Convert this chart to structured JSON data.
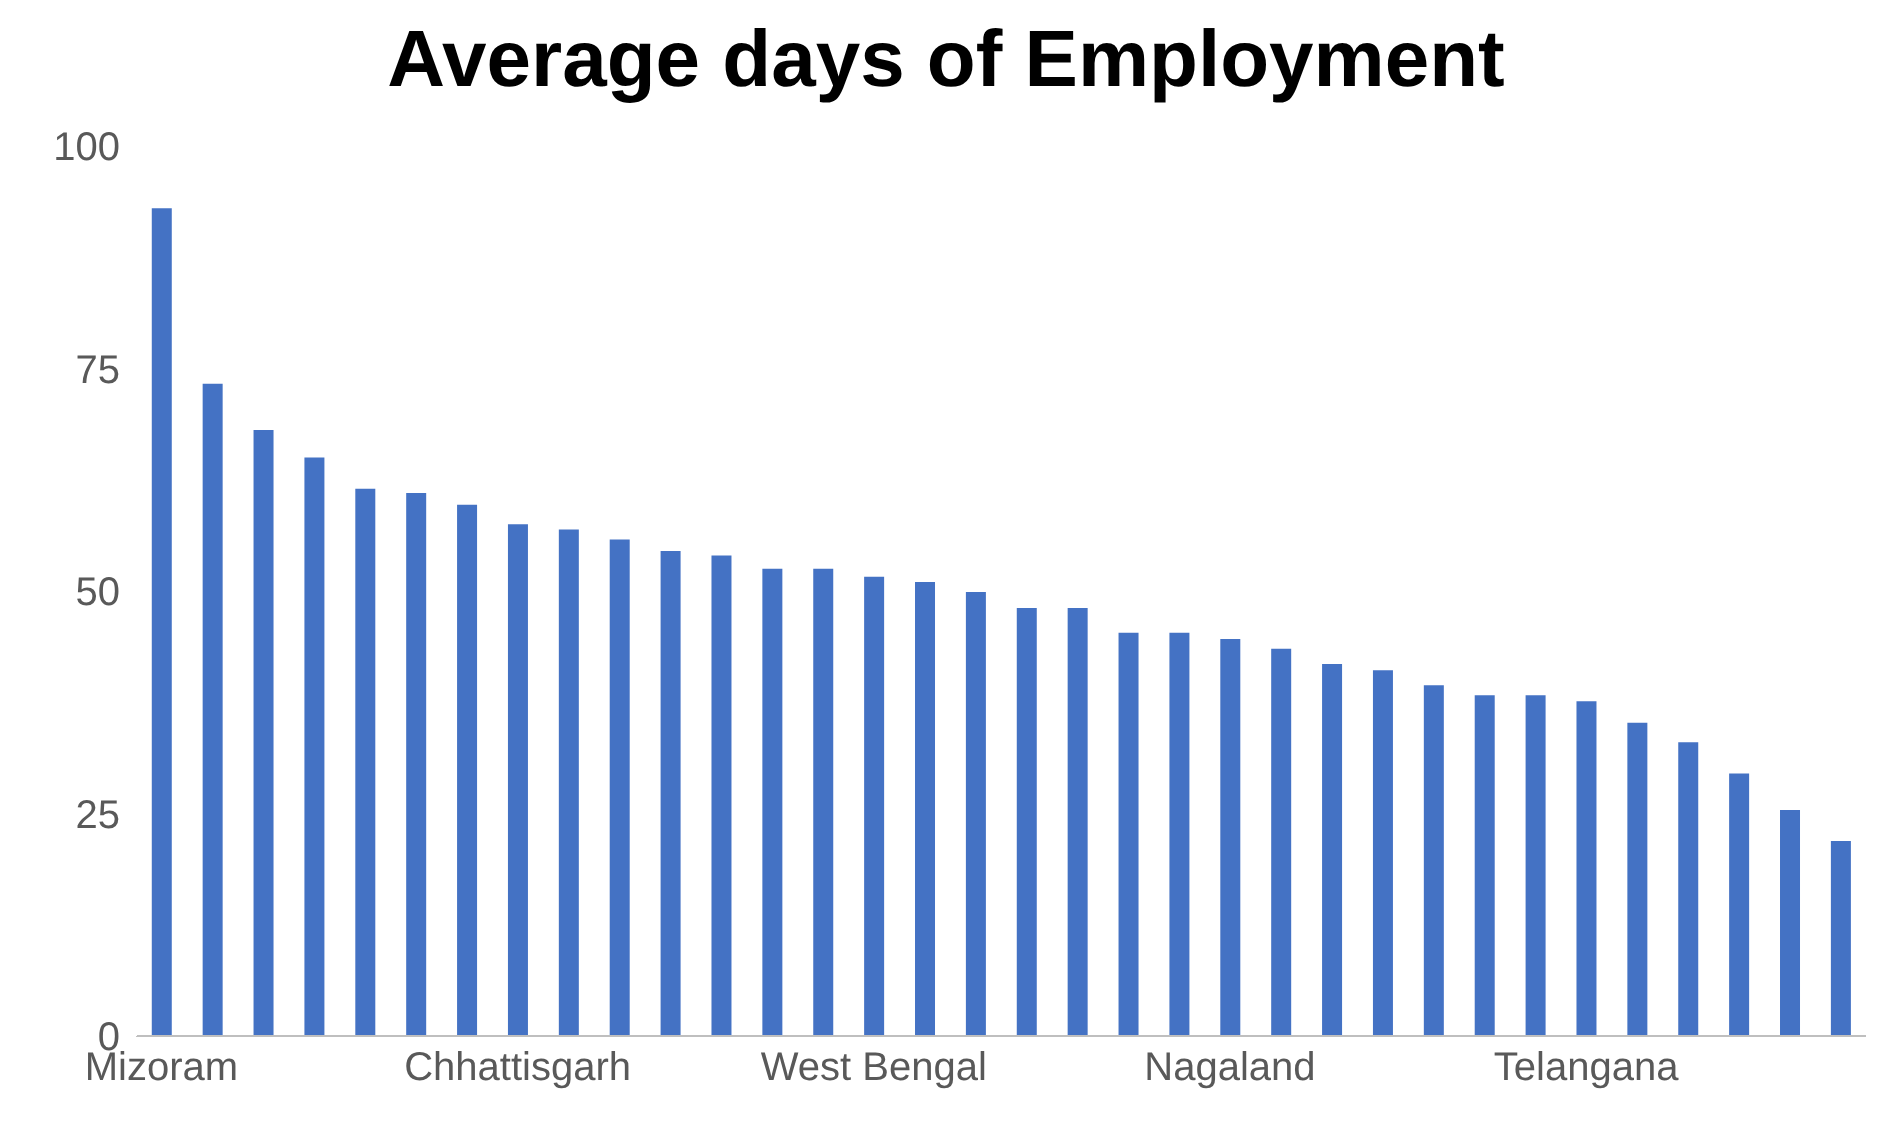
{
  "chart_data": {
    "type": "bar",
    "title": "Average days of Employment",
    "categories": [
      "Mizoram",
      null,
      null,
      null,
      null,
      null,
      null,
      "Chhattisgarh",
      null,
      null,
      null,
      null,
      null,
      null,
      "West Bengal",
      null,
      null,
      null,
      null,
      null,
      null,
      "Nagaland",
      null,
      null,
      null,
      null,
      null,
      null,
      "Telangana",
      null,
      null,
      null,
      null,
      null
    ],
    "values": [
      93,
      73.3,
      68.1,
      65,
      61.5,
      61,
      59.7,
      57.5,
      56.9,
      55.8,
      54.5,
      54,
      52.5,
      52.5,
      51.6,
      51,
      49.9,
      48.1,
      48.1,
      45.3,
      45.3,
      44.6,
      43.5,
      41.8,
      41.1,
      39.4,
      38.3,
      38.3,
      37.6,
      35.2,
      33,
      29.5,
      25.4,
      21.9
    ],
    "color": "#4472c4",
    "ylim": [
      0,
      100
    ],
    "yticks": [
      0,
      25,
      50,
      75,
      100
    ],
    "grid": false
  }
}
